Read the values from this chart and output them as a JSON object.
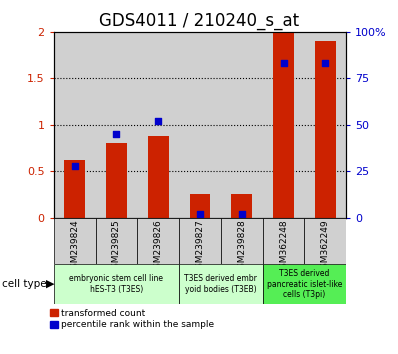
{
  "title": "GDS4011 / 210240_s_at",
  "samples": [
    "GSM239824",
    "GSM239825",
    "GSM239826",
    "GSM239827",
    "GSM239828",
    "GSM362248",
    "GSM362249"
  ],
  "red_values": [
    0.62,
    0.8,
    0.88,
    0.25,
    0.25,
    2.0,
    1.9
  ],
  "blue_values": [
    28,
    45,
    52,
    2,
    2,
    83,
    83
  ],
  "ylim_left": [
    0,
    2
  ],
  "ylim_right": [
    0,
    100
  ],
  "yticks_left": [
    0,
    0.5,
    1.0,
    1.5,
    2.0
  ],
  "yticks_right": [
    0,
    25,
    50,
    75,
    100
  ],
  "ytick_labels_right": [
    "0",
    "25",
    "50",
    "75",
    "100%"
  ],
  "red_color": "#cc2200",
  "blue_color": "#0000cc",
  "bar_bg_color": "#d0d0d0",
  "title_fontsize": 12,
  "axis_fontsize": 8,
  "sample_fontsize": 6.5,
  "cell_type_label": "cell type",
  "legend_red": "transformed count",
  "legend_blue": "percentile rank within the sample",
  "groups": [
    {
      "label": "embryonic stem cell line\nhES-T3 (T3ES)",
      "start": 0,
      "end": 3,
      "color": "#ccffcc"
    },
    {
      "label": "T3ES derived embr\nyoid bodies (T3EB)",
      "start": 3,
      "end": 5,
      "color": "#ccffcc"
    },
    {
      "label": "T3ES derived\npancreatic islet-like\ncells (T3pi)",
      "start": 5,
      "end": 7,
      "color": "#55ee55"
    }
  ]
}
